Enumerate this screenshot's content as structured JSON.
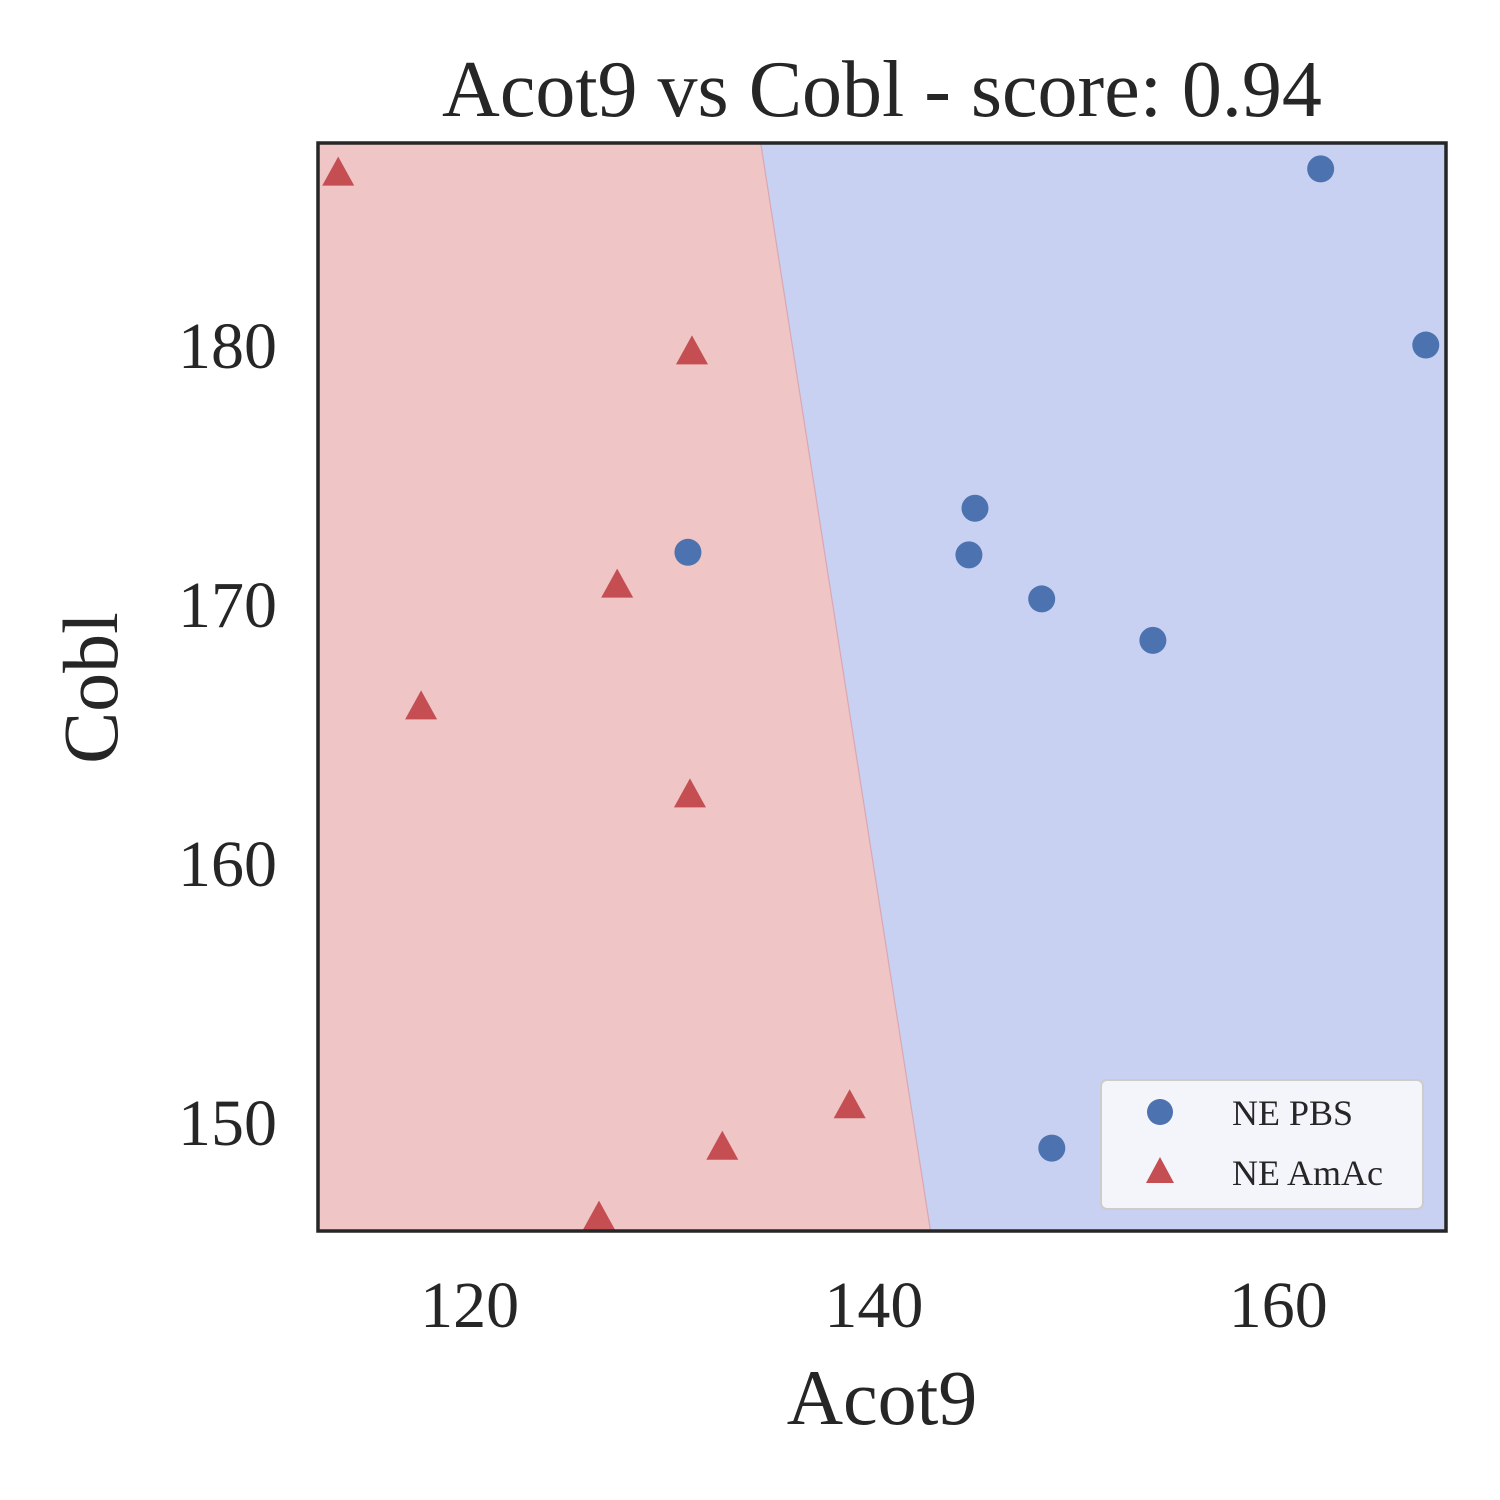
{
  "chart_data": {
    "type": "scatter",
    "title": "Acot9 vs Cobl - score: 0.94",
    "xlabel": "Acot9",
    "ylabel": "Cobl",
    "xlim": [
      112.5,
      168.3
    ],
    "ylim": [
      145.8,
      187.8
    ],
    "xticks": [
      120,
      140,
      160
    ],
    "yticks": [
      150,
      160,
      170,
      180
    ],
    "grid": false,
    "legend_position": "lower-right",
    "decision_boundary": {
      "top": {
        "x": 134.4,
        "y": 187.8
      },
      "bottom": {
        "x": 142.8,
        "y": 145.8
      },
      "left_region_class": "NE AmAc",
      "right_region_class": "NE PBS"
    },
    "colors": {
      "pbs_point": "#4c72b0",
      "amac_point": "#c44e52",
      "pbs_region": "#c9d1f2",
      "amac_region": "#efc5c5",
      "frame": "#262626"
    },
    "series": [
      {
        "name": "NE PBS",
        "marker": "circle",
        "points": [
          [
            162.1,
            186.8
          ],
          [
            167.3,
            180.0
          ],
          [
            145.0,
            173.7
          ],
          [
            144.7,
            171.9
          ],
          [
            130.8,
            172.0
          ],
          [
            148.3,
            170.2
          ],
          [
            153.8,
            168.6
          ],
          [
            148.8,
            149.0
          ]
        ]
      },
      {
        "name": "NE AmAc",
        "marker": "triangle",
        "points": [
          [
            113.5,
            186.6
          ],
          [
            131.0,
            179.7
          ],
          [
            127.3,
            170.7
          ],
          [
            117.6,
            166.0
          ],
          [
            130.9,
            162.6
          ],
          [
            138.8,
            150.6
          ],
          [
            132.5,
            149.0
          ],
          [
            126.4,
            146.3
          ]
        ]
      }
    ]
  }
}
